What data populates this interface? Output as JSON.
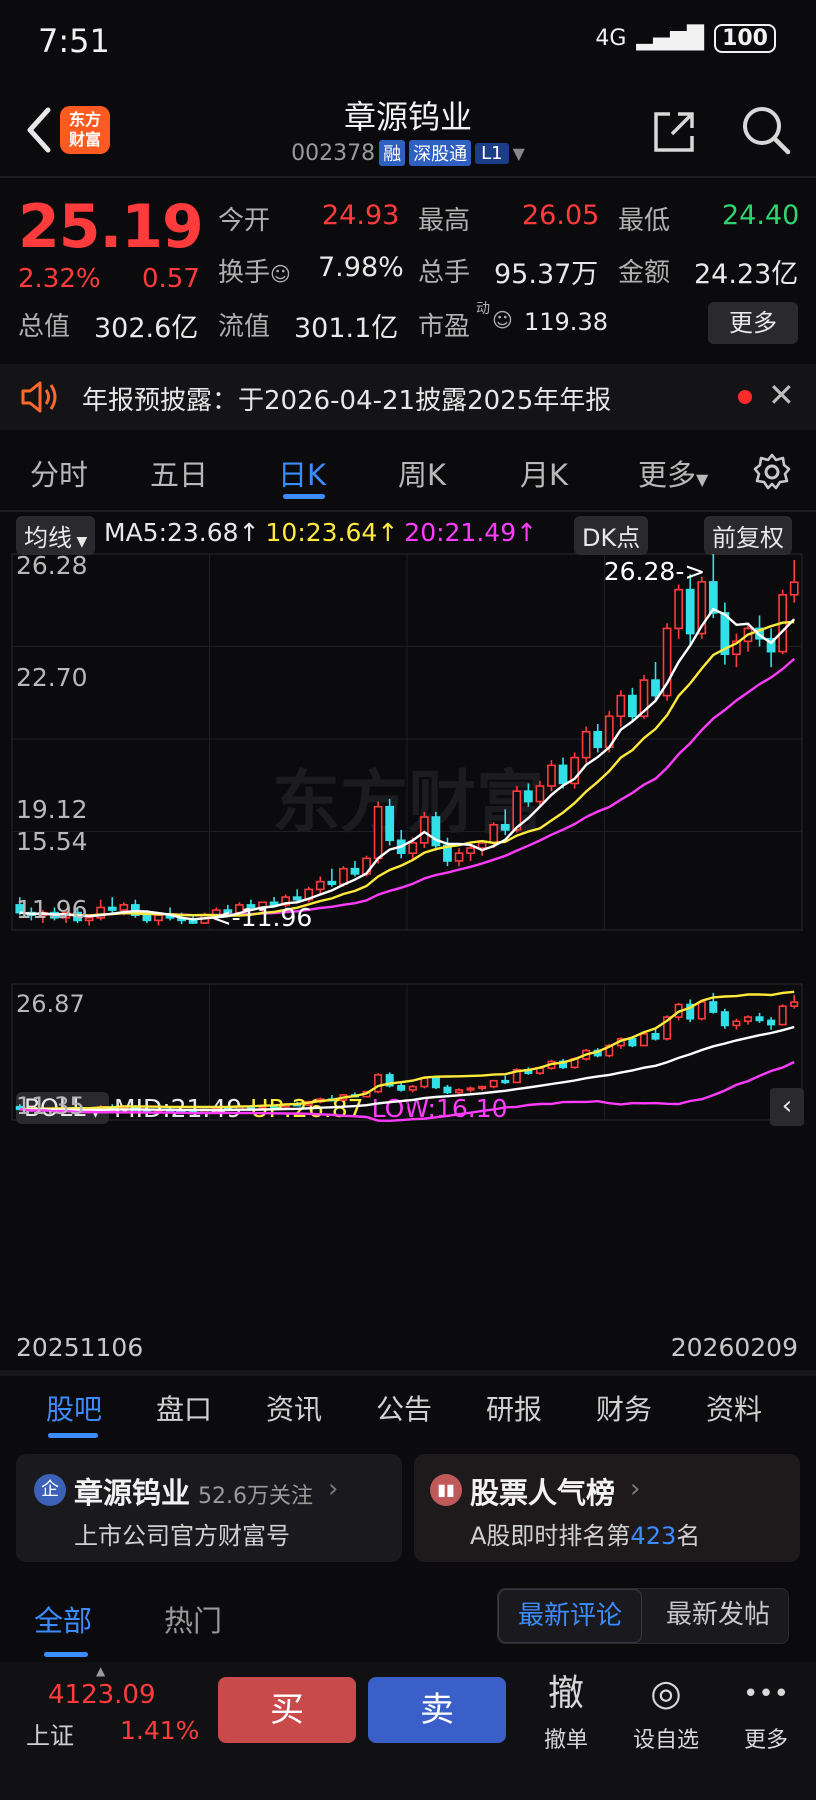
{
  "status_bar": {
    "time": "7:51",
    "network": "4G",
    "battery": "100"
  },
  "header": {
    "logo_line1": "东方",
    "logo_line2": "财富",
    "stock_name": "章源钨业",
    "stock_code": "002378",
    "tags": [
      "融",
      "深股通",
      "L1"
    ]
  },
  "quote": {
    "price": "25.19",
    "change_pct": "2.32%",
    "change": "0.57",
    "rows": [
      [
        {
          "label": "今开",
          "value": "24.93",
          "color": "red"
        },
        {
          "label": "最高",
          "value": "26.05",
          "color": "red"
        },
        {
          "label": "最低",
          "value": "24.40",
          "color": "green"
        }
      ],
      [
        {
          "label": "换手",
          "value": "7.98%",
          "color": "white"
        },
        {
          "label": "总手",
          "value": "95.37万",
          "color": "white"
        },
        {
          "label": "金额",
          "value": "24.23亿",
          "color": "white"
        }
      ],
      [
        {
          "label": "总值",
          "value": "302.6亿",
          "color": "white"
        },
        {
          "label": "流值",
          "value": "301.1亿",
          "color": "white"
        },
        {
          "label": "市盈",
          "value": "119.38",
          "color": "white"
        }
      ]
    ],
    "pe_superscript": "动",
    "more_label": "更多"
  },
  "notice": {
    "text": "年报预披露：于2026-04-21披露2025年年报"
  },
  "period_tabs": [
    "分时",
    "五日",
    "日K",
    "周K",
    "月K",
    "更多"
  ],
  "active_period": 2,
  "main_legend": {
    "label": "均线",
    "ma5": "MA5:23.68",
    "ma10": "10:23.64",
    "ma20": "20:21.49",
    "arrow": "↑",
    "dk_label": "DK点",
    "adjust_label": "前复权"
  },
  "boll_legend": {
    "label": "BOLL",
    "mid": "MID:21.49",
    "up": "UP:26.87",
    "low": "LOW:16.10"
  },
  "watermark": "东方财富",
  "chart_data": {
    "type": "candlestick",
    "title": "",
    "y_ticks": [
      "26.28",
      "22.70",
      "19.12",
      "15.54",
      "11.96"
    ],
    "ylim": [
      11.96,
      26.28
    ],
    "max_label": "26.28->",
    "min_label": "<-11.96",
    "boll_ticks": [
      "26.87",
      "11.35"
    ],
    "boll_ylim": [
      11.35,
      26.87
    ],
    "x_start": "20251106",
    "x_end": "20260209",
    "series": [
      {
        "name": "MA5",
        "color": "#ffffff"
      },
      {
        "name": "MA10",
        "color": "#ffea3b"
      },
      {
        "name": "MA20",
        "color": "#ff3bff"
      }
    ],
    "candles": [
      [
        12.7,
        13.0,
        12.3,
        12.4
      ],
      [
        12.4,
        12.6,
        12.1,
        12.3
      ],
      [
        12.3,
        12.5,
        12.0,
        12.4
      ],
      [
        12.4,
        12.6,
        12.1,
        12.2
      ],
      [
        12.2,
        12.5,
        12.0,
        12.4
      ],
      [
        12.4,
        12.6,
        12.0,
        12.1
      ],
      [
        12.1,
        12.3,
        11.9,
        12.2
      ],
      [
        12.2,
        12.9,
        12.1,
        12.6
      ],
      [
        12.6,
        13.0,
        12.4,
        12.5
      ],
      [
        12.5,
        12.8,
        12.3,
        12.7
      ],
      [
        12.7,
        12.9,
        12.2,
        12.3
      ],
      [
        12.3,
        12.5,
        12.0,
        12.1
      ],
      [
        12.1,
        12.4,
        11.9,
        12.3
      ],
      [
        12.3,
        12.6,
        12.1,
        12.2
      ],
      [
        12.2,
        12.4,
        11.96,
        12.1
      ],
      [
        12.1,
        12.3,
        11.96,
        12.0
      ],
      [
        12.0,
        12.4,
        11.96,
        12.3
      ],
      [
        12.3,
        12.6,
        12.1,
        12.5
      ],
      [
        12.5,
        12.7,
        12.3,
        12.4
      ],
      [
        12.4,
        12.8,
        12.3,
        12.7
      ],
      [
        12.7,
        12.9,
        12.5,
        12.6
      ],
      [
        12.6,
        12.8,
        12.4,
        12.8
      ],
      [
        12.8,
        13.0,
        12.6,
        12.7
      ],
      [
        12.7,
        13.1,
        12.6,
        13.0
      ],
      [
        13.0,
        13.3,
        12.8,
        12.9
      ],
      [
        12.9,
        13.4,
        12.8,
        13.3
      ],
      [
        13.3,
        13.8,
        13.1,
        13.6
      ],
      [
        13.6,
        14.1,
        13.4,
        13.5
      ],
      [
        13.5,
        14.2,
        13.4,
        14.1
      ],
      [
        14.1,
        14.4,
        13.8,
        13.9
      ],
      [
        13.9,
        14.6,
        13.8,
        14.5
      ],
      [
        14.5,
        16.7,
        14.3,
        16.5
      ],
      [
        16.5,
        16.8,
        15.0,
        15.2
      ],
      [
        15.2,
        15.6,
        14.5,
        14.7
      ],
      [
        14.7,
        15.3,
        14.4,
        15.1
      ],
      [
        15.1,
        16.3,
        14.9,
        16.1
      ],
      [
        16.1,
        16.3,
        14.8,
        15.0
      ],
      [
        15.0,
        15.3,
        14.2,
        14.4
      ],
      [
        14.4,
        14.9,
        14.2,
        14.7
      ],
      [
        14.7,
        15.1,
        14.4,
        14.9
      ],
      [
        14.9,
        15.2,
        14.6,
        15.1
      ],
      [
        15.1,
        15.9,
        14.9,
        15.8
      ],
      [
        15.8,
        16.4,
        15.4,
        15.6
      ],
      [
        15.6,
        17.3,
        15.5,
        17.1
      ],
      [
        17.1,
        17.4,
        16.5,
        16.7
      ],
      [
        16.7,
        17.5,
        16.5,
        17.3
      ],
      [
        17.3,
        18.3,
        17.1,
        18.1
      ],
      [
        18.1,
        18.4,
        17.2,
        17.4
      ],
      [
        17.4,
        18.6,
        17.2,
        18.4
      ],
      [
        18.4,
        19.6,
        18.2,
        19.4
      ],
      [
        19.4,
        19.7,
        18.6,
        18.8
      ],
      [
        18.8,
        20.2,
        18.6,
        20.0
      ],
      [
        20.0,
        21.0,
        19.6,
        20.8
      ],
      [
        20.8,
        21.1,
        19.8,
        20.0
      ],
      [
        20.0,
        21.6,
        19.9,
        21.4
      ],
      [
        21.4,
        22.1,
        20.6,
        20.8
      ],
      [
        20.8,
        23.6,
        20.6,
        23.4
      ],
      [
        23.4,
        25.1,
        23.0,
        24.9
      ],
      [
        24.9,
        25.5,
        22.8,
        23.2
      ],
      [
        23.2,
        25.4,
        23.0,
        25.2
      ],
      [
        25.2,
        26.28,
        23.8,
        24.0
      ],
      [
        24.0,
        24.4,
        22.0,
        22.4
      ],
      [
        22.4,
        23.2,
        21.9,
        22.9
      ],
      [
        22.9,
        23.6,
        22.5,
        23.4
      ],
      [
        23.4,
        23.9,
        22.7,
        23.0
      ],
      [
        23.0,
        23.4,
        21.9,
        22.5
      ],
      [
        22.5,
        24.9,
        22.4,
        24.7
      ],
      [
        24.7,
        26.05,
        24.4,
        25.19
      ]
    ]
  },
  "bottom_tabs": [
    "股吧",
    "盘口",
    "资讯",
    "公告",
    "研报",
    "财务",
    "资料"
  ],
  "active_bottom_tab": 0,
  "cards": {
    "company": {
      "icon": "企",
      "name": "章源钨业",
      "followers": "52.6万关注",
      "subtitle": "上市公司官方财富号"
    },
    "rank": {
      "title": "股票人气榜",
      "prefix": "A股即时排名第",
      "rank": "423",
      "suffix": "名"
    }
  },
  "sub_tabs": [
    "全部",
    "热门"
  ],
  "sort": {
    "latest_comment": "最新评论",
    "latest_post": "最新发帖"
  },
  "bottom_bar": {
    "index_value": "4123.09",
    "index_name": "上证",
    "index_pct": "1.41%",
    "buy": "买",
    "sell": "卖",
    "tools": [
      {
        "icon": "撤",
        "label": "撤单"
      },
      {
        "icon": "◎",
        "label": "设自选"
      },
      {
        "icon": "•••",
        "label": "更多"
      }
    ]
  }
}
